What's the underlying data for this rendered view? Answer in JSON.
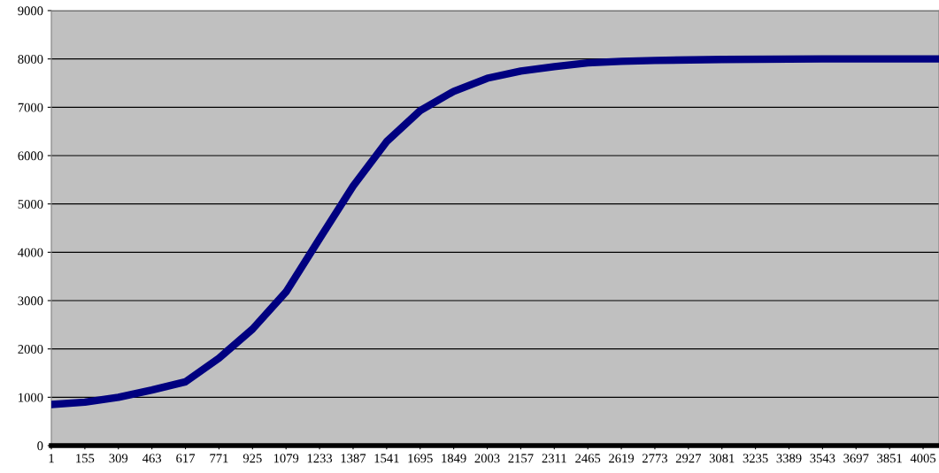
{
  "chart_data": {
    "type": "line",
    "x": [
      1,
      155,
      309,
      463,
      617,
      771,
      925,
      1079,
      1233,
      1387,
      1541,
      1695,
      1849,
      2003,
      2157,
      2311,
      2465,
      2619,
      2773,
      3081,
      3543,
      4078
    ],
    "series": [
      {
        "color": "#000080",
        "values": [
          850,
          900,
          1000,
          1150,
          1320,
          1810,
          2410,
          3180,
          4280,
          5370,
          6290,
          6930,
          7330,
          7600,
          7750,
          7840,
          7920,
          7950,
          7970,
          7990,
          8000,
          8000
        ]
      }
    ],
    "xlim": [
      1,
      4078
    ],
    "xticks": [
      1,
      155,
      309,
      463,
      617,
      771,
      925,
      1079,
      1233,
      1387,
      1541,
      1695,
      1849,
      2003,
      2157,
      2311,
      2465,
      2619,
      2773,
      2927,
      3081,
      3235,
      3389,
      3543,
      3697,
      3851,
      4005
    ],
    "ylim": [
      0,
      9000
    ],
    "yticks": [
      0,
      1000,
      2000,
      3000,
      4000,
      5000,
      6000,
      7000,
      8000,
      9000
    ],
    "grid": "y",
    "legend": false,
    "marker": "none",
    "line_style": "solid"
  }
}
